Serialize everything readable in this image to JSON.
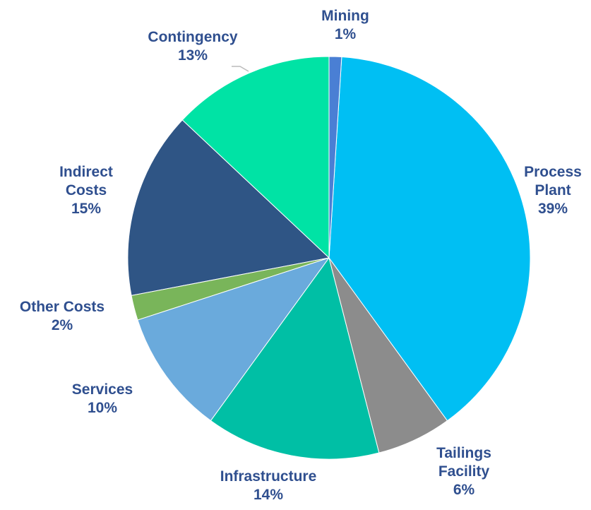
{
  "chart_data": {
    "type": "pie",
    "categories": [
      "Mining",
      "Process Plant",
      "Tailings Facility",
      "Infrastructure",
      "Services",
      "Other Costs",
      "Indirect Costs",
      "Contingency"
    ],
    "values": [
      1,
      39,
      6,
      14,
      10,
      2,
      15,
      13
    ],
    "value_labels": [
      "1%",
      "39%",
      "6%",
      "14%",
      "10%",
      "2%",
      "15%",
      "13%"
    ],
    "colors": [
      "#4a7fd4",
      "#00bff3",
      "#8c8c8c",
      "#00bfa5",
      "#6aaadc",
      "#79b55a",
      "#2f5585",
      "#00e3a5"
    ]
  }
}
